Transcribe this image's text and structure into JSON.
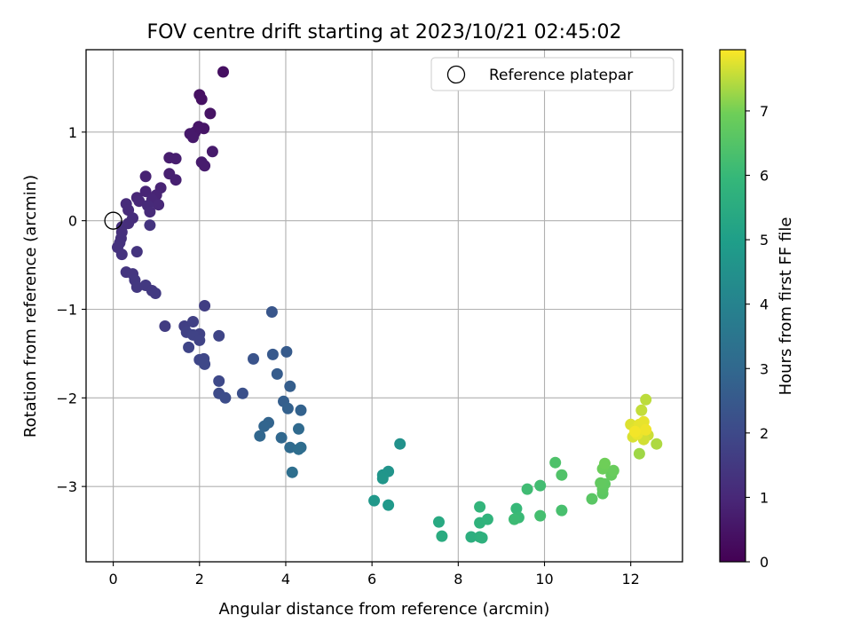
{
  "chart_data": {
    "type": "scatter",
    "title": "FOV centre drift starting at 2023/10/21 02:45:02",
    "xlabel": "Angular distance from reference (arcmin)",
    "ylabel": "Rotation from reference (arcmin)",
    "colorbar_label": "Hours from first FF file",
    "xlim": [
      -0.63,
      13.2
    ],
    "ylim": [
      -3.85,
      1.93
    ],
    "clim": [
      0,
      7.95
    ],
    "xticks": [
      0,
      2,
      4,
      6,
      8,
      10,
      12
    ],
    "yticks": [
      1,
      0,
      -1,
      -2,
      -3
    ],
    "cbar_ticks": [
      0,
      1,
      2,
      3,
      4,
      5,
      6,
      7
    ],
    "colormap": "viridis",
    "grid": true,
    "legend": {
      "placement": "upper-right",
      "entries": [
        "Reference platepar"
      ]
    },
    "reference": {
      "x": 0,
      "y": 0
    },
    "points": [
      [
        2.55,
        1.68,
        0.35
      ],
      [
        2.0,
        1.42,
        0.4
      ],
      [
        2.05,
        1.37,
        0.42
      ],
      [
        2.25,
        1.21,
        0.45
      ],
      [
        2.1,
        1.04,
        0.5
      ],
      [
        1.98,
        1.06,
        0.52
      ],
      [
        1.9,
        1.0,
        0.55
      ],
      [
        1.78,
        0.98,
        0.6
      ],
      [
        1.85,
        0.94,
        0.62
      ],
      [
        2.3,
        0.78,
        0.65
      ],
      [
        2.05,
        0.66,
        0.68
      ],
      [
        2.12,
        0.62,
        0.7
      ],
      [
        1.3,
        0.71,
        0.72
      ],
      [
        1.45,
        0.7,
        0.75
      ],
      [
        1.3,
        0.53,
        0.78
      ],
      [
        1.45,
        0.46,
        0.8
      ],
      [
        0.75,
        0.5,
        0.85
      ],
      [
        1.1,
        0.37,
        0.88
      ],
      [
        0.75,
        0.33,
        0.9
      ],
      [
        1.0,
        0.29,
        0.92
      ],
      [
        0.55,
        0.26,
        0.95
      ],
      [
        0.9,
        0.24,
        0.97
      ],
      [
        0.6,
        0.22,
        1.0
      ],
      [
        1.05,
        0.18,
        1.02
      ],
      [
        0.8,
        0.17,
        1.05
      ],
      [
        0.85,
        0.1,
        1.07
      ],
      [
        0.3,
        0.19,
        1.1
      ],
      [
        0.35,
        0.12,
        1.12
      ],
      [
        0.45,
        0.03,
        1.15
      ],
      [
        0.35,
        -0.03,
        1.17
      ],
      [
        0.2,
        -0.07,
        1.2
      ],
      [
        0.2,
        -0.13,
        1.22
      ],
      [
        0.18,
        -0.2,
        1.25
      ],
      [
        0.15,
        -0.25,
        1.27
      ],
      [
        0.1,
        -0.3,
        1.3
      ],
      [
        0.2,
        -0.38,
        1.32
      ],
      [
        0.55,
        -0.35,
        1.35
      ],
      [
        0.85,
        -0.05,
        1.37
      ],
      [
        0.3,
        -0.58,
        1.4
      ],
      [
        0.45,
        -0.6,
        1.42
      ],
      [
        0.5,
        -0.67,
        1.45
      ],
      [
        0.55,
        -0.75,
        1.47
      ],
      [
        0.75,
        -0.73,
        1.5
      ],
      [
        0.9,
        -0.79,
        1.52
      ],
      [
        0.98,
        -0.82,
        1.55
      ],
      [
        1.2,
        -1.19,
        1.6
      ],
      [
        2.12,
        -0.96,
        1.65
      ],
      [
        1.65,
        -1.19,
        1.7
      ],
      [
        1.85,
        -1.14,
        1.72
      ],
      [
        1.7,
        -1.26,
        1.75
      ],
      [
        2.0,
        -1.28,
        1.78
      ],
      [
        1.85,
        -1.29,
        1.8
      ],
      [
        2.0,
        -1.35,
        1.82
      ],
      [
        1.75,
        -1.43,
        1.85
      ],
      [
        2.45,
        -1.3,
        1.88
      ],
      [
        2.0,
        -1.57,
        1.9
      ],
      [
        2.1,
        -1.56,
        1.92
      ],
      [
        2.12,
        -1.62,
        1.95
      ],
      [
        2.45,
        -1.81,
        2.0
      ],
      [
        2.45,
        -1.95,
        2.05
      ],
      [
        2.6,
        -2.0,
        2.1
      ],
      [
        3.0,
        -1.95,
        2.2
      ],
      [
        3.25,
        -1.56,
        2.3
      ],
      [
        3.68,
        -1.03,
        2.4
      ],
      [
        3.7,
        -1.51,
        2.5
      ],
      [
        4.02,
        -1.48,
        2.55
      ],
      [
        3.8,
        -1.73,
        2.6
      ],
      [
        4.1,
        -1.87,
        2.65
      ],
      [
        3.95,
        -2.04,
        2.7
      ],
      [
        4.05,
        -2.12,
        2.75
      ],
      [
        4.35,
        -2.14,
        2.8
      ],
      [
        3.6,
        -2.28,
        2.85
      ],
      [
        3.5,
        -2.32,
        2.9
      ],
      [
        3.4,
        -2.43,
        2.95
      ],
      [
        3.9,
        -2.45,
        3.0
      ],
      [
        4.3,
        -2.35,
        3.05
      ],
      [
        4.1,
        -2.56,
        3.1
      ],
      [
        4.35,
        -2.56,
        3.15
      ],
      [
        4.3,
        -2.58,
        3.2
      ],
      [
        4.15,
        -2.84,
        3.25
      ],
      [
        6.65,
        -2.52,
        4.5
      ],
      [
        6.38,
        -2.83,
        4.6
      ],
      [
        6.25,
        -2.87,
        4.65
      ],
      [
        6.25,
        -2.91,
        4.7
      ],
      [
        6.05,
        -3.16,
        4.75
      ],
      [
        6.38,
        -3.21,
        4.8
      ],
      [
        7.55,
        -3.4,
        5.4
      ],
      [
        7.62,
        -3.56,
        5.5
      ],
      [
        8.3,
        -3.57,
        5.6
      ],
      [
        8.5,
        -3.57,
        5.65
      ],
      [
        8.55,
        -3.58,
        5.7
      ],
      [
        8.5,
        -3.41,
        5.75
      ],
      [
        8.68,
        -3.37,
        5.8
      ],
      [
        8.5,
        -3.23,
        5.85
      ],
      [
        9.35,
        -3.25,
        6.0
      ],
      [
        9.4,
        -3.35,
        6.05
      ],
      [
        9.3,
        -3.37,
        6.1
      ],
      [
        9.6,
        -3.03,
        6.15
      ],
      [
        9.9,
        -2.99,
        6.2
      ],
      [
        9.9,
        -3.33,
        6.25
      ],
      [
        10.4,
        -3.27,
        6.3
      ],
      [
        10.25,
        -2.73,
        6.4
      ],
      [
        10.4,
        -2.87,
        6.45
      ],
      [
        11.1,
        -3.14,
        6.6
      ],
      [
        11.35,
        -3.08,
        6.65
      ],
      [
        11.35,
        -3.03,
        6.7
      ],
      [
        11.4,
        -2.97,
        6.72
      ],
      [
        11.3,
        -2.96,
        6.75
      ],
      [
        11.55,
        -2.87,
        6.8
      ],
      [
        11.6,
        -2.82,
        6.85
      ],
      [
        11.35,
        -2.8,
        6.9
      ],
      [
        11.4,
        -2.74,
        6.95
      ],
      [
        12.2,
        -2.63,
        7.3
      ],
      [
        12.6,
        -2.52,
        7.4
      ],
      [
        12.35,
        -2.02,
        7.5
      ],
      [
        12.25,
        -2.14,
        7.55
      ],
      [
        12.4,
        -2.42,
        7.6
      ],
      [
        12.3,
        -2.47,
        7.65
      ],
      [
        12.05,
        -2.44,
        7.7
      ],
      [
        12.0,
        -2.3,
        7.72
      ],
      [
        12.1,
        -2.35,
        7.75
      ],
      [
        12.2,
        -2.3,
        7.78
      ],
      [
        12.3,
        -2.27,
        7.8
      ],
      [
        12.15,
        -2.41,
        7.82
      ],
      [
        12.35,
        -2.36,
        7.85
      ],
      [
        12.1,
        -2.38,
        7.88
      ]
    ]
  }
}
